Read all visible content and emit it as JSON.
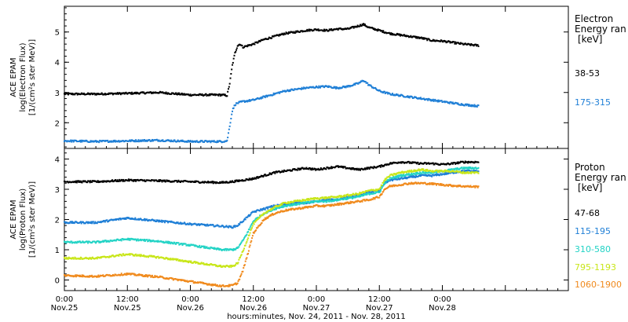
{
  "chart_data": [
    {
      "type": "scatter",
      "panel": "electron",
      "ylabel_lines": [
        "ACE EPAM",
        "log(Electron Flux)",
        "[1/(cm²s ster MeV)]"
      ],
      "legend_title": [
        "Electron",
        "Energy ran",
        "[keV]"
      ],
      "xlim": [
        0,
        96
      ],
      "ylim": [
        1.15,
        5.85
      ],
      "yticks": [
        2,
        3,
        4,
        5
      ],
      "series": [
        {
          "name": "38-53",
          "color": "#000000",
          "x": [
            0,
            6,
            12,
            18,
            24,
            30,
            31,
            31.5,
            32,
            32.5,
            33,
            33.5,
            34,
            36,
            38,
            40,
            42,
            44,
            46,
            48,
            50,
            52,
            54,
            56,
            57,
            58,
            60,
            62,
            64,
            66,
            68,
            70,
            72,
            74,
            76,
            79
          ],
          "y": [
            2.95,
            2.95,
            2.97,
            3.0,
            2.92,
            2.92,
            2.9,
            3.3,
            3.9,
            4.3,
            4.55,
            4.6,
            4.5,
            4.6,
            4.75,
            4.85,
            4.95,
            5.0,
            5.05,
            5.08,
            5.05,
            5.1,
            5.1,
            5.2,
            5.25,
            5.15,
            5.05,
            4.95,
            4.9,
            4.85,
            4.8,
            4.72,
            4.7,
            4.65,
            4.6,
            4.55
          ]
        },
        {
          "name": "175-315",
          "color": "#1f7fd6",
          "x": [
            0,
            6,
            12,
            18,
            24,
            30,
            31,
            31.5,
            32,
            32.5,
            33,
            34,
            36,
            38,
            40,
            42,
            44,
            46,
            48,
            50,
            52,
            54,
            56,
            57,
            58,
            60,
            62,
            64,
            66,
            68,
            70,
            72,
            74,
            76,
            79
          ],
          "y": [
            1.4,
            1.38,
            1.4,
            1.42,
            1.38,
            1.38,
            1.4,
            1.9,
            2.4,
            2.6,
            2.65,
            2.7,
            2.75,
            2.85,
            2.95,
            3.05,
            3.1,
            3.15,
            3.18,
            3.2,
            3.15,
            3.2,
            3.3,
            3.4,
            3.25,
            3.05,
            2.95,
            2.9,
            2.85,
            2.8,
            2.75,
            2.7,
            2.65,
            2.6,
            2.55
          ]
        }
      ]
    },
    {
      "type": "scatter",
      "panel": "proton",
      "ylabel_lines": [
        "ACE EPAM",
        "log(Proton Flux)",
        "[1/(cm²s ster MeV)]"
      ],
      "legend_title": [
        "Proton",
        "Energy ran",
        "[keV]"
      ],
      "xlim": [
        0,
        96
      ],
      "ylim": [
        -0.35,
        4.35
      ],
      "yticks": [
        0,
        1,
        2,
        3,
        4
      ],
      "xtick_times": [
        "0:00",
        "12:00",
        "0:00",
        "12:00",
        "0:00",
        "12:00",
        "0:00"
      ],
      "xtick_dates": [
        "Nov.25",
        "Nov.25",
        "Nov.26",
        "Nov.26",
        "Nov.27",
        "Nov.27",
        "Nov.28"
      ],
      "xlabel": "hours:minutes, Nov. 24, 2011 - Nov. 28, 2011",
      "series": [
        {
          "name": "47-68",
          "color": "#000000",
          "x": [
            0,
            6,
            12,
            18,
            24,
            30,
            32,
            34,
            36,
            38,
            40,
            42,
            44,
            46,
            48,
            50,
            52,
            54,
            56,
            58,
            60,
            62,
            64,
            66,
            68,
            70,
            72,
            74,
            76,
            79
          ],
          "y": [
            3.25,
            3.25,
            3.3,
            3.28,
            3.25,
            3.22,
            3.25,
            3.3,
            3.35,
            3.45,
            3.55,
            3.6,
            3.65,
            3.7,
            3.65,
            3.7,
            3.75,
            3.7,
            3.65,
            3.7,
            3.75,
            3.85,
            3.9,
            3.88,
            3.85,
            3.85,
            3.82,
            3.85,
            3.9,
            3.9
          ]
        },
        {
          "name": "115-195",
          "color": "#1f7fd6",
          "x": [
            0,
            6,
            12,
            18,
            24,
            30,
            32,
            33,
            34,
            35,
            36,
            38,
            40,
            42,
            44,
            46,
            48,
            50,
            52,
            54,
            56,
            58,
            60,
            61,
            62,
            64,
            66,
            68,
            70,
            72,
            74,
            76,
            79
          ],
          "y": [
            1.9,
            1.9,
            2.05,
            1.95,
            1.85,
            1.78,
            1.75,
            1.8,
            1.95,
            2.1,
            2.25,
            2.35,
            2.45,
            2.5,
            2.55,
            2.55,
            2.6,
            2.65,
            2.65,
            2.75,
            2.8,
            2.9,
            2.95,
            3.2,
            3.3,
            3.35,
            3.4,
            3.45,
            3.45,
            3.5,
            3.55,
            3.6,
            3.6
          ]
        },
        {
          "name": "310-580",
          "color": "#22d3c5",
          "x": [
            0,
            6,
            12,
            18,
            24,
            30,
            32,
            33,
            34,
            35,
            36,
            38,
            40,
            42,
            44,
            46,
            48,
            50,
            52,
            54,
            56,
            58,
            60,
            61,
            62,
            64,
            66,
            68,
            70,
            72,
            74,
            76,
            79
          ],
          "y": [
            1.25,
            1.25,
            1.35,
            1.28,
            1.15,
            1.0,
            1.0,
            1.05,
            1.3,
            1.6,
            1.95,
            2.2,
            2.35,
            2.45,
            2.5,
            2.55,
            2.6,
            2.6,
            2.65,
            2.7,
            2.75,
            2.85,
            2.9,
            3.2,
            3.35,
            3.45,
            3.5,
            3.55,
            3.55,
            3.6,
            3.65,
            3.7,
            3.7
          ]
        },
        {
          "name": "795-1193",
          "color": "#c8e619",
          "x": [
            0,
            6,
            12,
            18,
            24,
            30,
            32,
            33,
            34,
            35,
            36,
            38,
            40,
            42,
            44,
            46,
            48,
            50,
            52,
            54,
            56,
            58,
            60,
            61,
            62,
            64,
            66,
            68,
            70,
            72,
            74,
            76,
            79
          ],
          "y": [
            0.72,
            0.72,
            0.85,
            0.75,
            0.6,
            0.45,
            0.45,
            0.55,
            0.95,
            1.4,
            1.85,
            2.2,
            2.4,
            2.55,
            2.6,
            2.65,
            2.7,
            2.72,
            2.75,
            2.8,
            2.85,
            2.95,
            3.0,
            3.3,
            3.45,
            3.55,
            3.6,
            3.65,
            3.6,
            3.6,
            3.6,
            3.55,
            3.55
          ]
        },
        {
          "name": "1060-1900",
          "color": "#f08a1d",
          "x": [
            0,
            6,
            12,
            18,
            24,
            30,
            32,
            33,
            34,
            35,
            36,
            38,
            40,
            42,
            44,
            46,
            48,
            50,
            52,
            54,
            56,
            58,
            60,
            61,
            62,
            64,
            66,
            68,
            70,
            72,
            74,
            76,
            79
          ],
          "y": [
            0.15,
            0.12,
            0.2,
            0.1,
            -0.05,
            -0.2,
            -0.18,
            -0.1,
            0.3,
            0.9,
            1.55,
            2.0,
            2.2,
            2.3,
            2.35,
            2.4,
            2.45,
            2.45,
            2.5,
            2.55,
            2.6,
            2.65,
            2.75,
            3.0,
            3.1,
            3.15,
            3.2,
            3.2,
            3.18,
            3.15,
            3.12,
            3.1,
            3.08
          ]
        }
      ]
    }
  ]
}
